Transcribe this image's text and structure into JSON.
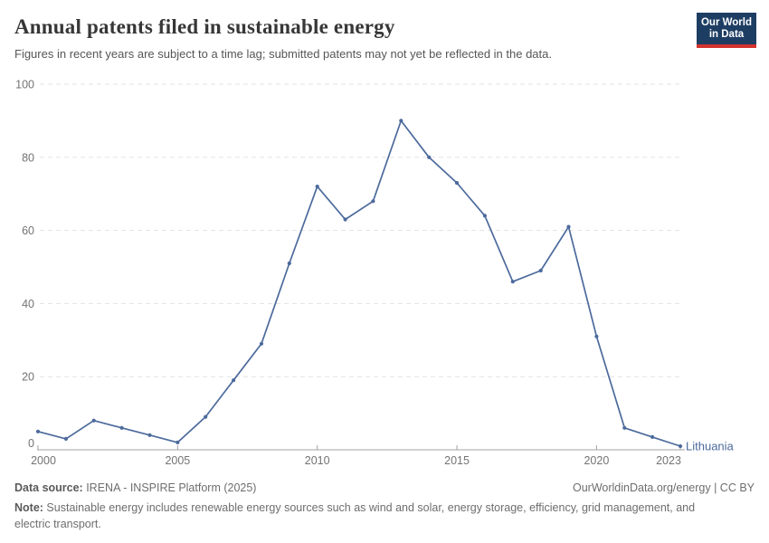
{
  "header": {
    "title": "Annual patents filed in sustainable energy",
    "subtitle": "Figures in recent years are subject to a time lag; submitted patents may not yet be reflected in the data.",
    "logo_line1": "Our World",
    "logo_line2": "in Data"
  },
  "chart_data": {
    "type": "line",
    "title": "Annual patents filed in sustainable energy",
    "xlabel": "",
    "ylabel": "",
    "xlim": [
      2000,
      2023
    ],
    "ylim": [
      0,
      100
    ],
    "x_ticks": [
      2000,
      2005,
      2010,
      2015,
      2020,
      2023
    ],
    "y_ticks": [
      0,
      20,
      40,
      60,
      80,
      100
    ],
    "grid": "horizontal-dashed",
    "legend_position": "end-of-line-label",
    "series": [
      {
        "name": "Lithuania",
        "color": "#4c6a9c",
        "x": [
          2000,
          2001,
          2002,
          2003,
          2004,
          2005,
          2006,
          2007,
          2008,
          2009,
          2010,
          2011,
          2012,
          2013,
          2014,
          2015,
          2016,
          2017,
          2018,
          2019,
          2020,
          2021,
          2022,
          2023
        ],
        "values": [
          5,
          3,
          8,
          6,
          4,
          2,
          9,
          19,
          29,
          51,
          72,
          63,
          68,
          90,
          80,
          73,
          64,
          46,
          49,
          61,
          31,
          6,
          3.5,
          1
        ]
      }
    ]
  },
  "footer": {
    "data_source_label": "Data source:",
    "data_source_value": " IRENA - INSPIRE Platform (2025)",
    "link_text": "OurWorldinData.org/energy | CC BY",
    "note_label": "Note:",
    "note_value": " Sustainable energy includes renewable energy sources such as wind and solar, energy storage, efficiency, grid management, and electric transport."
  },
  "colors": {
    "series_line": "#4c6a9c",
    "gridline": "#e3e3e3",
    "axis_line": "#a3a3a3",
    "tick_label": "#737373",
    "title_text": "#373737",
    "subtitle_text": "#565656",
    "footer_text": "#6e6e6e",
    "logo_background": "#1d3d63",
    "logo_stripe": "#d2322e"
  }
}
